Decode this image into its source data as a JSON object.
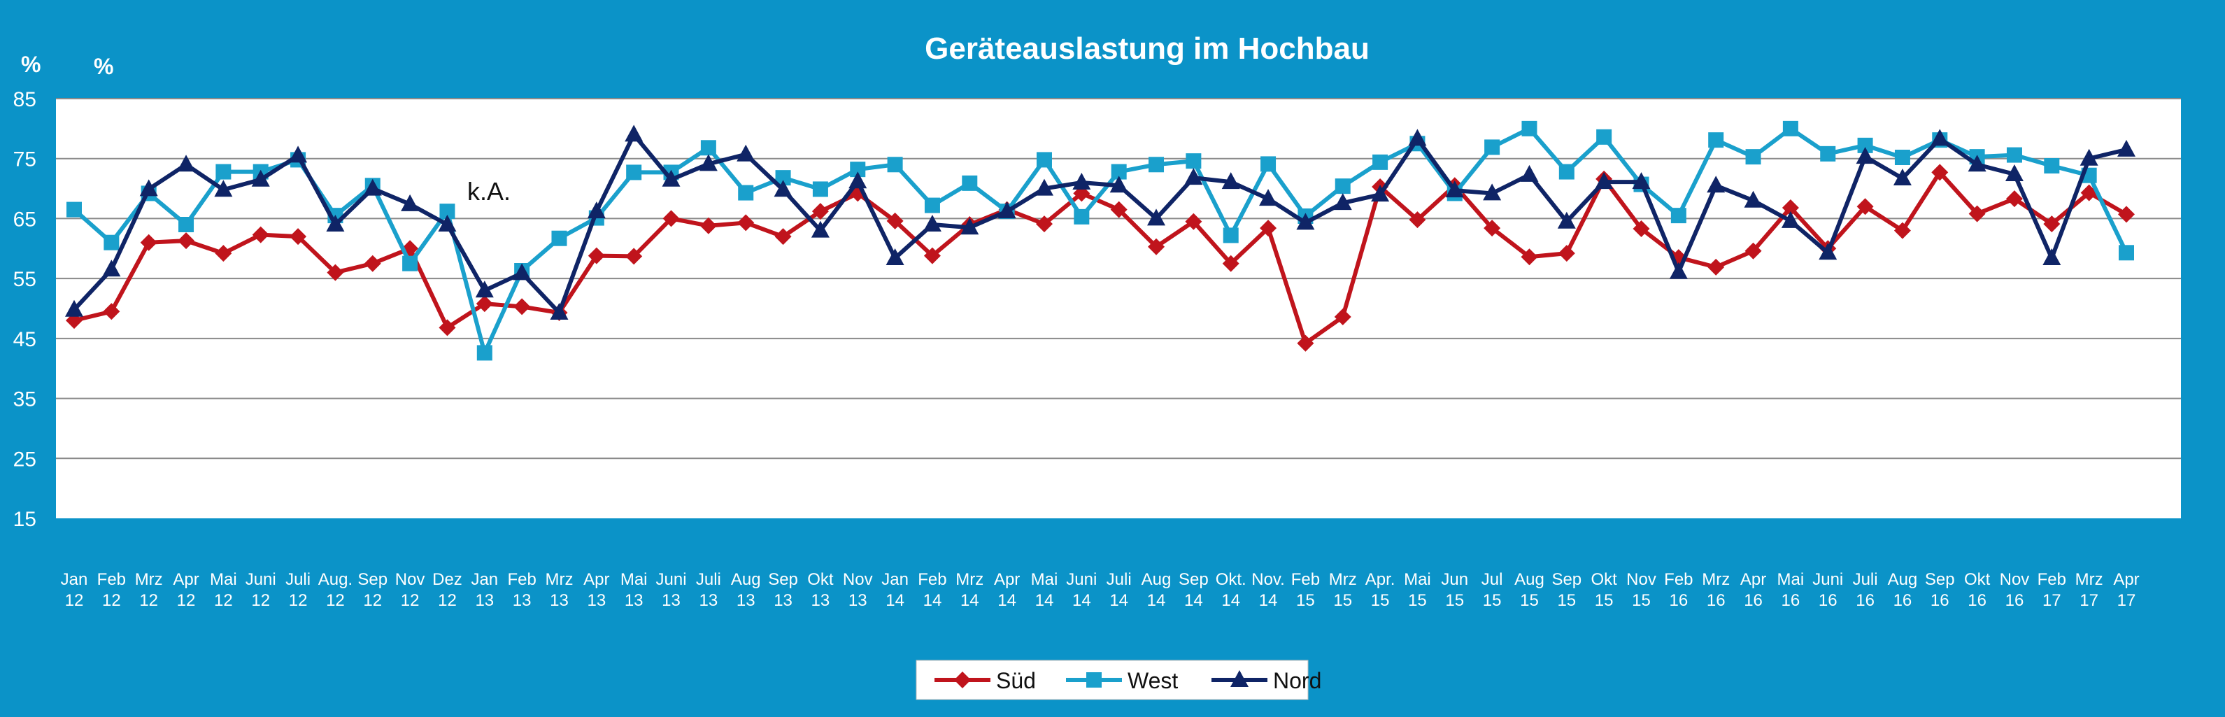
{
  "chart_data": {
    "type": "line",
    "title": "Geräteauslastung im Hochbau",
    "y_unit_labels": [
      "%",
      "%"
    ],
    "ylim": [
      15,
      85
    ],
    "yticks": [
      15,
      25,
      35,
      45,
      55,
      65,
      75,
      85
    ],
    "grid": true,
    "legend_position": "bottom-center",
    "annotation": "k.A.",
    "categories": [
      [
        "Jan",
        "12"
      ],
      [
        "Feb",
        "12"
      ],
      [
        "Mrz",
        "12"
      ],
      [
        "Apr",
        "12"
      ],
      [
        "Mai",
        "12"
      ],
      [
        "Juni",
        "12"
      ],
      [
        "Juli",
        "12"
      ],
      [
        "Aug.",
        "12"
      ],
      [
        "Sep",
        "12"
      ],
      [
        "Nov",
        "12"
      ],
      [
        "Dez",
        "12"
      ],
      [
        "Jan",
        "13"
      ],
      [
        "Feb",
        "13"
      ],
      [
        "Mrz",
        "13"
      ],
      [
        "Apr",
        "13"
      ],
      [
        "Mai",
        "13"
      ],
      [
        "Juni",
        "13"
      ],
      [
        "Juli",
        "13"
      ],
      [
        "Aug",
        "13"
      ],
      [
        "Sep",
        "13"
      ],
      [
        "Okt",
        "13"
      ],
      [
        "Nov",
        "13"
      ],
      [
        "Jan",
        "14"
      ],
      [
        "Feb",
        "14"
      ],
      [
        "Mrz",
        "14"
      ],
      [
        "Apr",
        "14"
      ],
      [
        "Mai",
        "14"
      ],
      [
        "Juni",
        "14"
      ],
      [
        "Juli",
        "14"
      ],
      [
        "Aug",
        "14"
      ],
      [
        "Sep",
        "14"
      ],
      [
        "Okt.",
        "14"
      ],
      [
        "Nov.",
        "14"
      ],
      [
        "Feb",
        "15"
      ],
      [
        "Mrz",
        "15"
      ],
      [
        "Apr.",
        "15"
      ],
      [
        "Mai",
        "15"
      ],
      [
        "Jun",
        "15"
      ],
      [
        "Jul",
        "15"
      ],
      [
        "Aug",
        "15"
      ],
      [
        "Sep",
        "15"
      ],
      [
        "Okt",
        "15"
      ],
      [
        "Nov",
        "15"
      ],
      [
        "Feb",
        "16"
      ],
      [
        "Mrz",
        "16"
      ],
      [
        "Apr",
        "16"
      ],
      [
        "Mai",
        "16"
      ],
      [
        "Juni",
        "16"
      ],
      [
        "Juli",
        "16"
      ],
      [
        "Aug",
        "16"
      ],
      [
        "Sep",
        "16"
      ],
      [
        "Okt",
        "16"
      ],
      [
        "Nov",
        "16"
      ],
      [
        "Feb",
        "17"
      ],
      [
        "Mrz",
        "17"
      ],
      [
        "Apr",
        "17"
      ]
    ],
    "series": [
      {
        "name": "Süd",
        "color": "#c0141c",
        "marker": "diamond",
        "values": [
          48,
          49.5,
          61,
          61.3,
          59.2,
          62.3,
          62,
          56,
          57.5,
          60,
          46.8,
          50.8,
          50.3,
          49.3,
          58.8,
          58.7,
          65,
          63.8,
          64.3,
          62,
          66.2,
          69.2,
          64.6,
          58.8,
          64,
          66.5,
          64.1,
          69.2,
          66.5,
          60.3,
          64.5,
          57.5,
          63.4,
          44.2,
          48.6,
          70.3,
          64.8,
          70.5,
          63.4,
          58.6,
          59.2,
          71.6,
          63.3,
          58.5,
          56.9,
          59.6,
          66.8,
          60,
          67,
          63,
          72.7,
          65.8,
          68.3,
          64.1,
          69.3,
          65.7
        ]
      },
      {
        "name": "West",
        "color": "#1aa0cc",
        "marker": "square",
        "values": [
          66.5,
          61,
          69.2,
          64,
          72.8,
          72.8,
          74.8,
          65.5,
          70.5,
          57.5,
          66.2,
          42.6,
          56.3,
          61.7,
          65.1,
          72.7,
          72.7,
          76.8,
          69.3,
          71.8,
          69.9,
          73.2,
          74,
          67.2,
          70.9,
          66.2,
          74.8,
          65.3,
          72.8,
          74,
          74.6,
          62.2,
          74.1,
          65.4,
          70.4,
          74.4,
          77.5,
          69.2,
          76.9,
          80,
          72.8,
          78.6,
          70.7,
          65.5,
          78.1,
          75.3,
          80,
          75.8,
          77.2,
          75.2,
          78.1,
          75.3,
          75.6,
          73.8,
          72.2,
          59.3
        ]
      },
      {
        "name": "Nord",
        "color": "#0f2466",
        "marker": "triangle",
        "values": [
          49.8,
          56.5,
          69.9,
          74,
          69.8,
          71.5,
          75.5,
          64,
          70,
          67.4,
          64,
          53,
          55.9,
          49.3,
          66.2,
          79,
          71.5,
          74.1,
          75.7,
          69.8,
          63,
          71.2,
          58.4,
          64,
          63.5,
          66.2,
          70,
          71,
          70.5,
          65,
          71.8,
          71.1,
          68.3,
          64.3,
          67.6,
          69,
          78.3,
          69.7,
          69.2,
          72.3,
          64.5,
          71.1,
          71.1,
          56.1,
          70.5,
          68,
          64.6,
          59.3,
          75.3,
          71.7,
          78.3,
          74,
          72.4,
          58.4,
          75,
          76.5
        ]
      }
    ]
  }
}
